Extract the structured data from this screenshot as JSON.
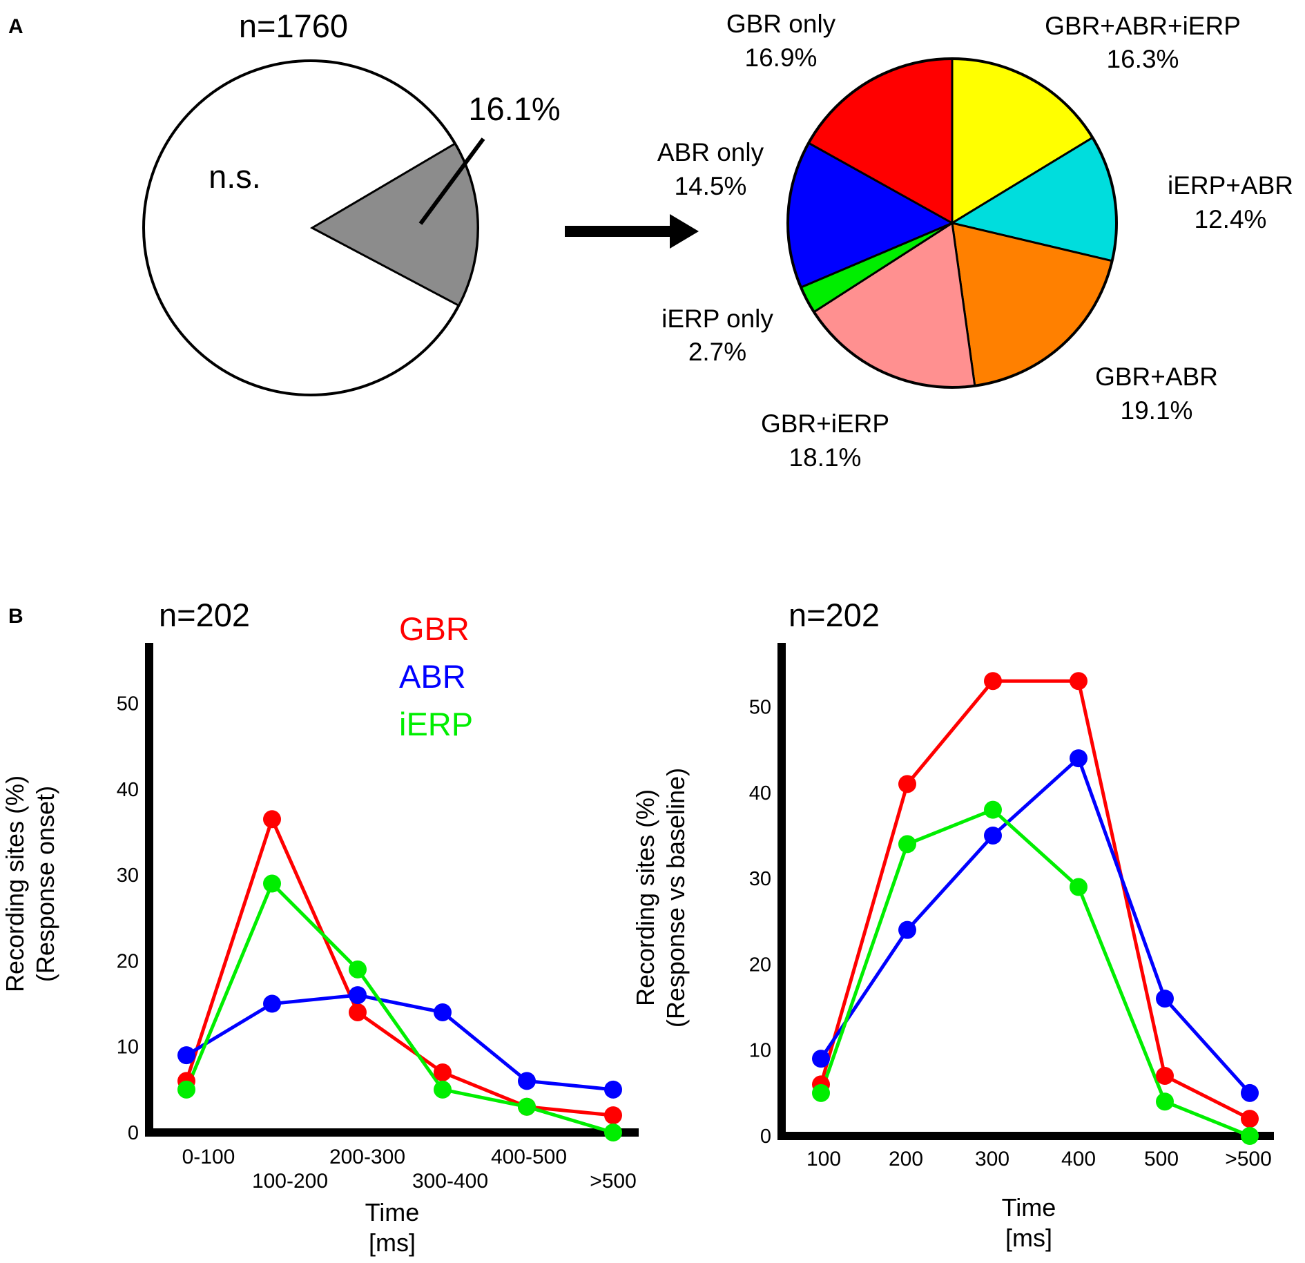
{
  "figure": {
    "panel_a_label": "A",
    "panel_b_label": "B",
    "arrow": "right-arrow-icon"
  },
  "colors": {
    "GBR": "#ff0000",
    "ABR": "#0000ff",
    "iERP": "#00ee00",
    "sig_slice": "#8c8c8c"
  },
  "chart_data": [
    {
      "type": "pie",
      "title": "n=1760",
      "slices": [
        {
          "label": "n.s.",
          "value": 83.9
        },
        {
          "label": "16.1%",
          "value": 16.1
        }
      ]
    },
    {
      "type": "pie",
      "title": "",
      "slices": [
        {
          "name": "GBR+ABR+iERP",
          "pct": "16.3%",
          "value": 16.3,
          "color": "#ffff00"
        },
        {
          "name": "iERP+ABR",
          "pct": "12.4%",
          "value": 12.4,
          "color": "#00dddd"
        },
        {
          "name": "GBR+ABR",
          "pct": "19.1%",
          "value": 19.1,
          "color": "#ff8000"
        },
        {
          "name": "GBR+iERP",
          "pct": "18.1%",
          "value": 18.1,
          "color": "#ff9090"
        },
        {
          "name": "iERP only",
          "pct": "2.7%",
          "value": 2.7,
          "color": "#00ee00"
        },
        {
          "name": "ABR only",
          "pct": "14.5%",
          "value": 14.5,
          "color": "#0000ff"
        },
        {
          "name": "GBR only",
          "pct": "16.9%",
          "value": 16.9,
          "color": "#ff0000"
        }
      ]
    },
    {
      "type": "line",
      "title": "n=202",
      "xlabel_line1": "Time",
      "xlabel_line2": "[ms]",
      "ylabel_line1": "Recording sites (%)",
      "ylabel_line2": "(Response onset)",
      "categories": [
        "0-100",
        "100-200",
        "200-300",
        "300-400",
        "400-500",
        ">500"
      ],
      "ylim": [
        0,
        57
      ],
      "yticks": [
        0,
        10,
        20,
        30,
        40,
        50
      ],
      "legend": [
        "GBR",
        "ABR",
        "iERP"
      ],
      "series": [
        {
          "name": "GBR",
          "values": [
            6,
            36.5,
            14,
            7,
            3,
            2
          ]
        },
        {
          "name": "ABR",
          "values": [
            9,
            15,
            16,
            14,
            6,
            5
          ]
        },
        {
          "name": "iERP",
          "values": [
            5,
            29,
            19,
            5,
            3,
            0
          ]
        }
      ]
    },
    {
      "type": "line",
      "title": "n=202",
      "xlabel_line1": "Time",
      "xlabel_line2": "[ms]",
      "ylabel_line1": "Recording sites (%)",
      "ylabel_line2": "(Response vs baseline)",
      "categories": [
        "100",
        "200",
        "300",
        "400",
        "500",
        ">500"
      ],
      "ylim": [
        0,
        57
      ],
      "yticks": [
        0,
        10,
        20,
        30,
        40,
        50
      ],
      "series": [
        {
          "name": "GBR",
          "values": [
            6,
            41,
            53,
            53,
            7,
            2
          ]
        },
        {
          "name": "ABR",
          "values": [
            9,
            24,
            35,
            44,
            16,
            5
          ]
        },
        {
          "name": "iERP",
          "values": [
            5,
            34,
            38,
            29,
            4,
            0
          ]
        }
      ]
    }
  ]
}
